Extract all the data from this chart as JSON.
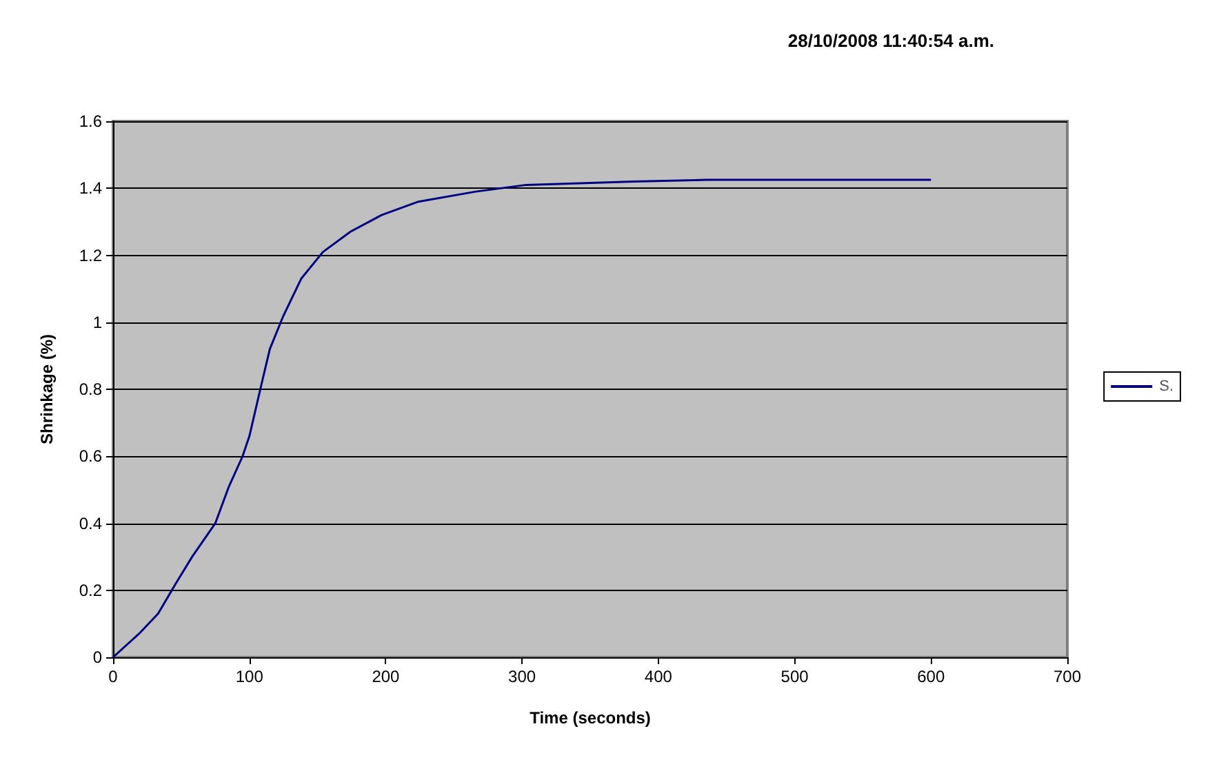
{
  "chart_data": {
    "type": "line",
    "title": "28/10/2008 11:40:54 a.m.",
    "xlabel": "Time (seconds)",
    "ylabel": "Shrinkage (%)",
    "series": [
      {
        "name": "S.",
        "color": "#000080",
        "x": [
          0,
          19,
          33,
          46,
          58,
          75,
          85,
          95,
          100,
          108,
          115,
          125,
          138,
          154,
          174,
          197,
          224,
          266,
          303,
          382,
          435,
          600
        ],
        "values": [
          0,
          0.07,
          0.13,
          0.22,
          0.3,
          0.4,
          0.51,
          0.6,
          0.66,
          0.8,
          0.92,
          1.02,
          1.13,
          1.21,
          1.27,
          1.32,
          1.36,
          1.39,
          1.41,
          1.42,
          1.425,
          1.425
        ]
      }
    ],
    "xlim": [
      0,
      700
    ],
    "xticks": [
      0,
      100,
      200,
      300,
      400,
      500,
      600,
      700
    ],
    "ylim": [
      0,
      1.6
    ],
    "yticks": [
      0,
      0.2,
      0.4,
      0.6,
      0.8,
      1,
      1.2,
      1.4,
      1.6
    ],
    "grid": "y",
    "legend": "right",
    "marker": "none",
    "line_style": "solid"
  }
}
